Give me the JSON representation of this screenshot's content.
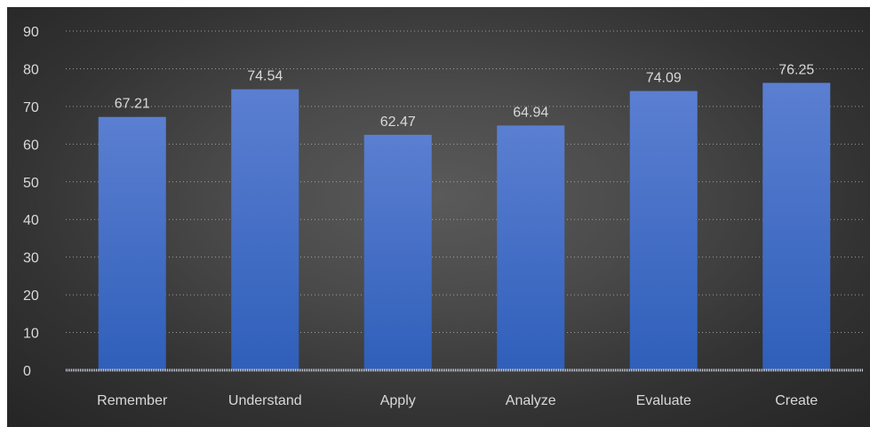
{
  "chart_data": {
    "type": "bar",
    "title": "",
    "xlabel": "",
    "ylabel": "",
    "categories": [
      "Remember",
      "Understand",
      "Apply",
      "Analyze",
      "Evaluate",
      "Create"
    ],
    "values": [
      67.21,
      74.54,
      62.47,
      64.94,
      74.09,
      76.25
    ],
    "value_labels": [
      "67.21",
      "74.54",
      "62.47",
      "64.94",
      "74.09",
      "76.25"
    ],
    "ylim": [
      0,
      90
    ],
    "yticks": [
      0,
      10,
      20,
      30,
      40,
      50,
      60,
      70,
      80,
      90
    ],
    "grid": true,
    "legend": "none",
    "colors": {
      "bar_top": "#5b7fd1",
      "bar_bottom": "#2f5fba",
      "background_center": "#5a5a5a",
      "background_edge": "#262626",
      "text": "#d9d9d9"
    }
  }
}
